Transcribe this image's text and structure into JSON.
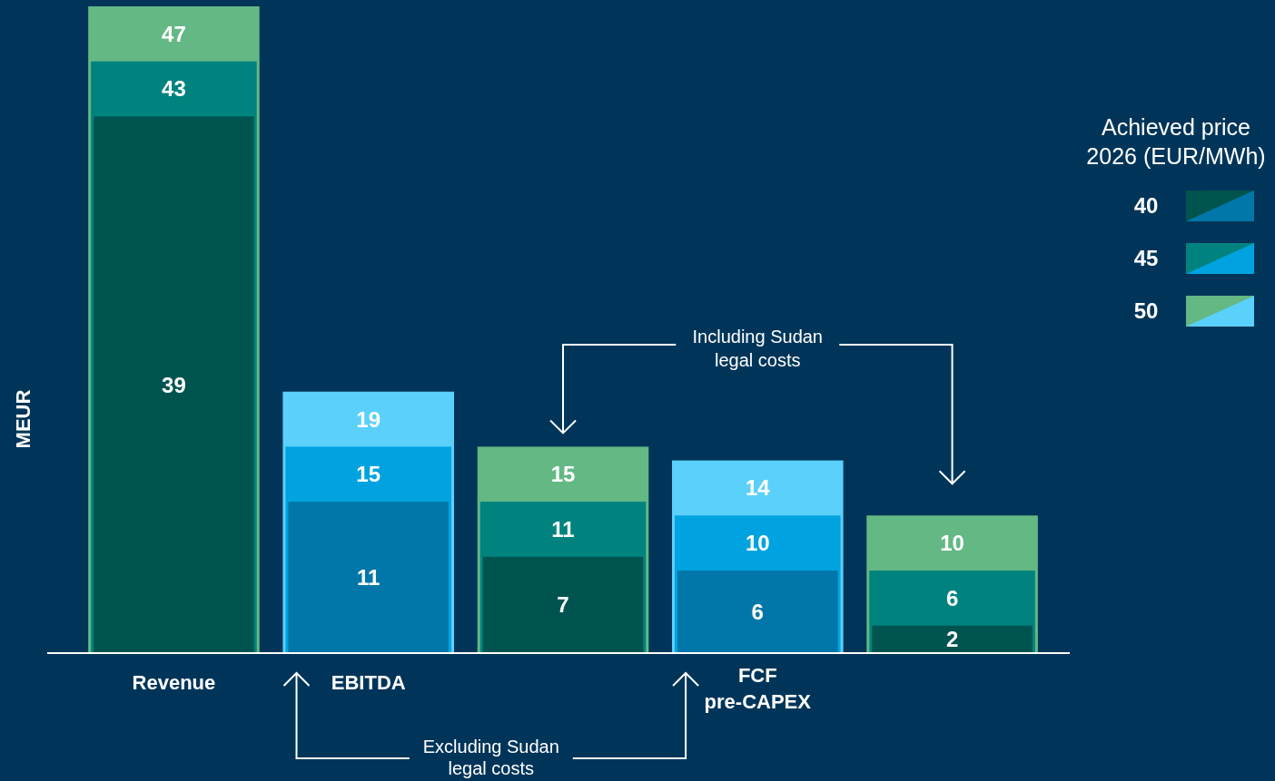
{
  "chart_data": {
    "type": "bar",
    "ylabel": "MEUR",
    "legend_title": "Achieved price 2026 (EUR/MWh)",
    "legend": "right",
    "categories": [
      "Revenue",
      "EBITDA",
      null,
      "FCF pre-CAPEX",
      null
    ],
    "series": [
      {
        "name": "40",
        "colors": [
          "#005450",
          "#0077a8",
          "#005450",
          "#0077a8",
          "#005450"
        ],
        "values": [
          39,
          11,
          7,
          6,
          2
        ],
        "value_labels": [
          "39",
          "11",
          "7",
          "6",
          "2"
        ]
      },
      {
        "name": "45",
        "colors": [
          "#00837f",
          "#00a3e0",
          "#00837f",
          "#00a3e0",
          "#00837f"
        ],
        "values": [
          43,
          15,
          11,
          10,
          6
        ],
        "value_labels": [
          "43",
          "15",
          "11",
          "10",
          "6"
        ]
      },
      {
        "name": "50",
        "colors": [
          "#63b884",
          "#5bd0fb",
          "#63b884",
          "#5bd0fb",
          "#63b884"
        ],
        "values": [
          47,
          19,
          15,
          14,
          10
        ],
        "value_labels": [
          "47",
          "19",
          "15",
          "14",
          "10"
        ]
      }
    ],
    "annotations": [
      "Including Sudan legal costs",
      "Excluding Sudan legal costs"
    ]
  }
}
